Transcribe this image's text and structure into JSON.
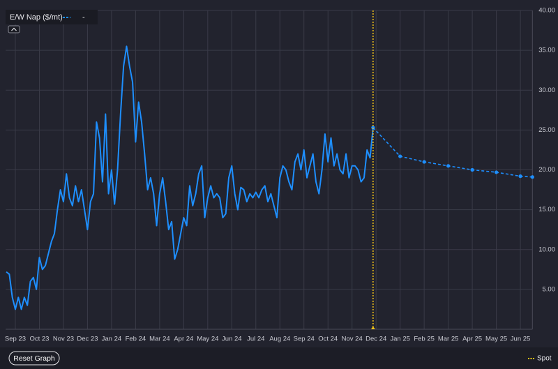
{
  "chart_data": {
    "type": "line",
    "categories": [
      "Sep 23",
      "Oct 23",
      "Nov 23",
      "Dec 23",
      "Jan 24",
      "Feb 24",
      "Mar 24",
      "Apr 24",
      "May 24",
      "Jun 24",
      "Jul 24",
      "Aug 24",
      "Sep 24",
      "Oct 24",
      "Nov 24",
      "Dec 24",
      "Jan 25",
      "Feb 25",
      "Mar 25",
      "Apr 25",
      "May 25",
      "Jun 25"
    ],
    "xlim": [
      -0.4,
      21.5
    ],
    "ylim": [
      0,
      40
    ],
    "yticks": [
      {
        "value": 5,
        "label": "5.00"
      },
      {
        "value": 10,
        "label": "10.00"
      },
      {
        "value": 15,
        "label": "15.00"
      },
      {
        "value": 20,
        "label": "20.00"
      },
      {
        "value": 25,
        "label": "25.00"
      },
      {
        "value": 30,
        "label": "30.00"
      },
      {
        "value": 35,
        "label": "35.00"
      },
      {
        "value": 40,
        "label": "40.00"
      }
    ],
    "grid": true,
    "series": [
      {
        "name": "E/W Nap ($/mt)",
        "color": "#1e8fff",
        "dashed": false,
        "x": [
          -0.375,
          -0.25,
          -0.125,
          0,
          0.125,
          0.25,
          0.375,
          0.5,
          0.625,
          0.75,
          0.875,
          1,
          1.125,
          1.25,
          1.375,
          1.5,
          1.625,
          1.75,
          1.875,
          2,
          2.125,
          2.25,
          2.375,
          2.5,
          2.625,
          2.75,
          2.875,
          3,
          3.125,
          3.25,
          3.375,
          3.5,
          3.625,
          3.75,
          3.875,
          4,
          4.125,
          4.25,
          4.375,
          4.5,
          4.625,
          4.75,
          4.875,
          5,
          5.125,
          5.25,
          5.375,
          5.5,
          5.625,
          5.75,
          5.875,
          6,
          6.125,
          6.25,
          6.375,
          6.5,
          6.625,
          6.75,
          6.875,
          7,
          7.125,
          7.25,
          7.375,
          7.5,
          7.625,
          7.75,
          7.875,
          8,
          8.125,
          8.25,
          8.375,
          8.5,
          8.625,
          8.75,
          8.875,
          9,
          9.125,
          9.25,
          9.375,
          9.5,
          9.625,
          9.75,
          9.875,
          10,
          10.125,
          10.25,
          10.375,
          10.5,
          10.625,
          10.75,
          10.875,
          11,
          11.125,
          11.25,
          11.375,
          11.5,
          11.625,
          11.75,
          11.875,
          12,
          12.125,
          12.25,
          12.375,
          12.5,
          12.625,
          12.75,
          12.875,
          13,
          13.125,
          13.25,
          13.375,
          13.5,
          13.625,
          13.75,
          13.875,
          14,
          14.125,
          14.25,
          14.375,
          14.5,
          14.625,
          14.75,
          14.875
        ],
        "values": [
          7.2,
          6.9,
          4.0,
          2.5,
          4.0,
          2.5,
          4.0,
          3.0,
          6.0,
          6.5,
          5.0,
          9.0,
          7.5,
          8.0,
          9.5,
          11.0,
          12.0,
          15.0,
          17.5,
          16.0,
          19.5,
          16.5,
          15.5,
          18.0,
          16.0,
          17.5,
          15.0,
          12.5,
          16.0,
          17.0,
          26.0,
          24.0,
          18.5,
          27.0,
          17.0,
          20.0,
          15.7,
          20.0,
          27.0,
          33.0,
          35.5,
          33.0,
          31.0,
          23.5,
          28.5,
          26.0,
          22.0,
          17.5,
          19.0,
          17.0,
          13.0,
          17.0,
          19.0,
          16.0,
          12.5,
          13.5,
          8.8,
          10.0,
          12.0,
          14.0,
          13.0,
          18.0,
          15.5,
          17.0,
          19.5,
          20.5,
          14.0,
          16.5,
          18.0,
          16.5,
          17.0,
          16.5,
          14.0,
          14.5,
          19.0,
          20.5,
          17.0,
          15.0,
          17.8,
          17.5,
          16.0,
          17.0,
          16.5,
          17.2,
          16.5,
          17.5,
          18.0,
          16.0,
          17.0,
          15.5,
          14.0,
          19.0,
          20.5,
          20.0,
          18.5,
          17.5,
          21.0,
          22.0,
          20.0,
          22.5,
          19.0,
          20.5,
          22.0,
          18.5,
          17.0,
          20.0,
          24.5,
          21.0,
          24.0,
          20.5,
          22.0,
          20.0,
          19.5,
          22.0,
          19.0,
          20.5,
          20.5,
          20.0,
          18.5,
          19.0,
          22.5,
          21.5,
          25.3
        ]
      },
      {
        "color": "#1e8fff",
        "dashed": true,
        "x": [
          14.875,
          16,
          17,
          18,
          19,
          20,
          21,
          21.5
        ],
        "values": [
          25.3,
          21.7,
          21.0,
          20.5,
          20.0,
          19.7,
          19.2,
          19.1
        ]
      }
    ],
    "spot": {
      "name": "Spot",
      "x": 14.875,
      "color": "#f5c518"
    },
    "legend_value": "-",
    "reset_button": "Reset Graph"
  }
}
